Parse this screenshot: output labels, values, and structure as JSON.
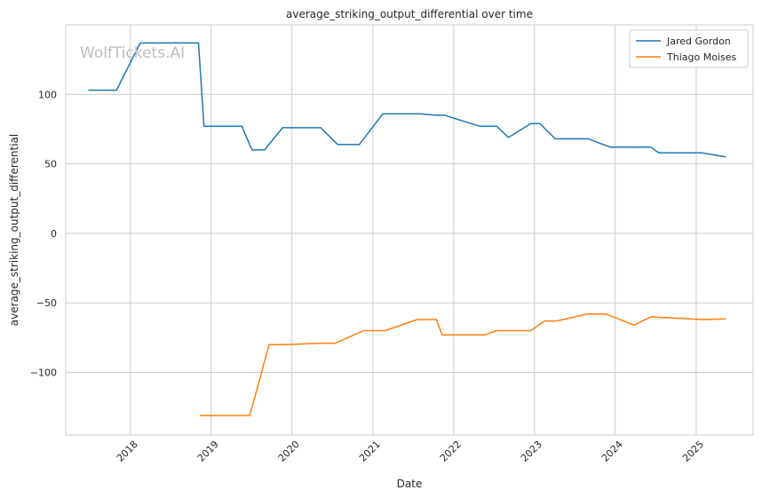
{
  "chart_data": {
    "type": "line",
    "title": "average_striking_output_differential over time",
    "xlabel": "Date",
    "ylabel": "average_striking_output_differential",
    "watermark": "WolfTickets.AI",
    "xlim": [
      "2017-03-15",
      "2025-09-15"
    ],
    "ylim": [
      -145,
      150
    ],
    "y_ticks": [
      100,
      50,
      0,
      -50,
      -100
    ],
    "y_tick_labels": [
      "100",
      "50",
      "0",
      "−50",
      "−100"
    ],
    "x_ticks": [
      "2018-01-01",
      "2019-01-01",
      "2020-01-01",
      "2021-01-01",
      "2022-01-01",
      "2023-01-01",
      "2024-01-01",
      "2025-01-01"
    ],
    "x_tick_labels": [
      "2018",
      "2019",
      "2020",
      "2021",
      "2022",
      "2023",
      "2024",
      "2025"
    ],
    "grid": true,
    "legend_position": "top-right",
    "series": [
      {
        "name": "Jared Gordon",
        "color": "#1f77b4",
        "points": [
          [
            "2017-06-25",
            103
          ],
          [
            "2017-10-30",
            103
          ],
          [
            "2018-02-15",
            137
          ],
          [
            "2018-11-05",
            137
          ],
          [
            "2018-11-30",
            77
          ],
          [
            "2019-05-20",
            77
          ],
          [
            "2019-07-05",
            60
          ],
          [
            "2019-08-30",
            60
          ],
          [
            "2019-11-20",
            76
          ],
          [
            "2020-05-10",
            76
          ],
          [
            "2020-07-25",
            64
          ],
          [
            "2020-11-01",
            64
          ],
          [
            "2021-02-15",
            86
          ],
          [
            "2021-08-05",
            86
          ],
          [
            "2021-10-10",
            85
          ],
          [
            "2021-11-20",
            85
          ],
          [
            "2022-04-30",
            77
          ],
          [
            "2022-07-15",
            77
          ],
          [
            "2022-09-05",
            69
          ],
          [
            "2022-12-15",
            79
          ],
          [
            "2023-01-25",
            79
          ],
          [
            "2023-04-05",
            68
          ],
          [
            "2023-09-01",
            68
          ],
          [
            "2023-12-10",
            62
          ],
          [
            "2024-06-10",
            62
          ],
          [
            "2024-07-15",
            58
          ],
          [
            "2025-01-25",
            58
          ],
          [
            "2025-05-15",
            55
          ]
        ]
      },
      {
        "name": "Thiago Moises",
        "color": "#ff7f0e",
        "points": [
          [
            "2018-11-10",
            -131
          ],
          [
            "2019-06-25",
            -131
          ],
          [
            "2019-09-20",
            -80
          ],
          [
            "2019-12-01",
            -80
          ],
          [
            "2020-05-10",
            -79
          ],
          [
            "2020-07-15",
            -79
          ],
          [
            "2020-11-20",
            -70
          ],
          [
            "2021-02-25",
            -70
          ],
          [
            "2021-07-20",
            -62
          ],
          [
            "2021-10-15",
            -62
          ],
          [
            "2021-11-10",
            -73
          ],
          [
            "2022-05-20",
            -73
          ],
          [
            "2022-07-15",
            -70
          ],
          [
            "2022-12-15",
            -70
          ],
          [
            "2023-02-15",
            -63
          ],
          [
            "2023-04-10",
            -63
          ],
          [
            "2023-08-30",
            -58
          ],
          [
            "2023-11-20",
            -58
          ],
          [
            "2024-03-25",
            -66
          ],
          [
            "2024-06-10",
            -60
          ],
          [
            "2025-01-25",
            -62
          ],
          [
            "2025-05-15",
            -61.5
          ]
        ]
      }
    ]
  }
}
